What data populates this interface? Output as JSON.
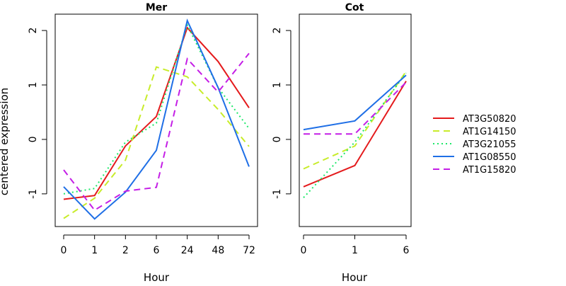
{
  "chart_data": {
    "type": "line",
    "ylabel": "centered expression",
    "colors": {
      "AT3G50820": "#e41a1c",
      "AT1G14150": "#c8ec2a",
      "AT3G21055": "#1ee86a",
      "AT1G08550": "#1f6fe6",
      "AT1G15820": "#c41ee6"
    },
    "legend": {
      "placement": "right",
      "entries": [
        {
          "name": "AT3G50820",
          "dash": "solid"
        },
        {
          "name": "AT1G14150",
          "dash": "dashed"
        },
        {
          "name": "AT3G21055",
          "dash": "dotted"
        },
        {
          "name": "AT1G08550",
          "dash": "solid"
        },
        {
          "name": "AT1G15820",
          "dash": "dashed"
        }
      ]
    },
    "panels": [
      {
        "title": "Mer",
        "xlabel": "Hour",
        "categories": [
          "0",
          "1",
          "2",
          "6",
          "24",
          "48",
          "72"
        ],
        "ylim": [
          -1.6,
          2.3
        ],
        "yticks": [
          -1,
          0,
          1,
          2
        ],
        "series": [
          {
            "name": "AT3G50820",
            "dash": "solid",
            "values": [
              -1.1,
              -1.03,
              -0.12,
              0.42,
              2.05,
              1.43,
              0.58
            ]
          },
          {
            "name": "AT1G14150",
            "dash": "dashed",
            "values": [
              -1.45,
              -1.08,
              -0.38,
              1.33,
              1.15,
              0.55,
              -0.13
            ]
          },
          {
            "name": "AT3G21055",
            "dash": "dotted",
            "values": [
              -1.0,
              -0.9,
              -0.05,
              0.3,
              2.1,
              0.95,
              0.2
            ]
          },
          {
            "name": "AT1G08550",
            "dash": "solid",
            "values": [
              -0.87,
              -1.46,
              -0.97,
              -0.2,
              2.18,
              0.95,
              -0.5
            ]
          },
          {
            "name": "AT1G15820",
            "dash": "dashed",
            "values": [
              -0.56,
              -1.3,
              -0.95,
              -0.88,
              1.48,
              0.87,
              1.58
            ]
          }
        ]
      },
      {
        "title": "Cot",
        "xlabel": "Hour",
        "categories": [
          "0",
          "1",
          "6"
        ],
        "ylim": [
          -1.6,
          2.3
        ],
        "yticks": [
          -1,
          0,
          1,
          2
        ],
        "series": [
          {
            "name": "AT3G50820",
            "dash": "solid",
            "values": [
              -0.87,
              -0.48,
              1.07
            ]
          },
          {
            "name": "AT1G14150",
            "dash": "dashed",
            "values": [
              -0.54,
              -0.12,
              1.25
            ]
          },
          {
            "name": "AT3G21055",
            "dash": "dotted",
            "values": [
              -1.07,
              -0.05,
              1.22
            ]
          },
          {
            "name": "AT1G08550",
            "dash": "solid",
            "values": [
              0.18,
              0.34,
              1.18
            ]
          },
          {
            "name": "AT1G15820",
            "dash": "dashed",
            "values": [
              0.1,
              0.1,
              1.05
            ]
          }
        ]
      }
    ]
  }
}
